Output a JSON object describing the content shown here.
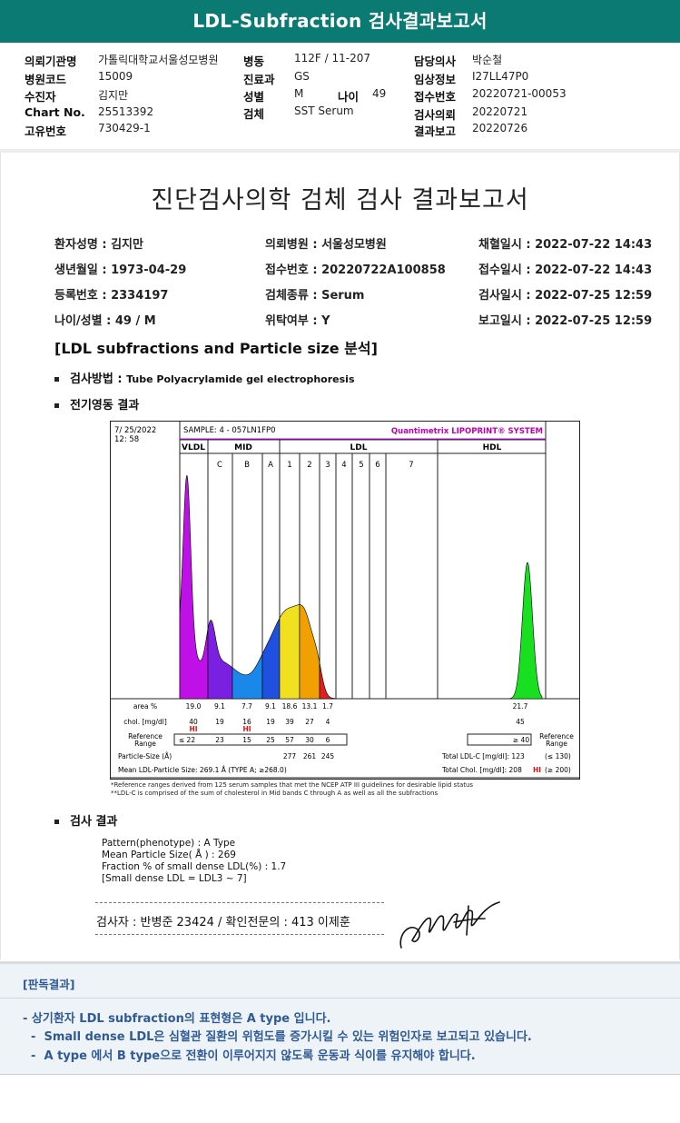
{
  "header": {
    "title": "LDL-Subfraction 검사결과보고서"
  },
  "info": [
    {
      "label": "의뢰기관명",
      "value": "가톨릭대학교서울성모병원"
    },
    {
      "label": "병원코드",
      "value": "15009"
    },
    {
      "label": "수진자",
      "value": "김지만"
    },
    {
      "label": "Chart No.",
      "value": "25513392"
    },
    {
      "label": "고유번호",
      "value": "730429-1"
    },
    {
      "label": "병동",
      "value": "112F / 11-207"
    },
    {
      "label": "진료과",
      "value": "GS"
    },
    {
      "label": "성별",
      "value": "M"
    },
    {
      "label": "검체",
      "value": "SST Serum"
    },
    {
      "label": "담당의사",
      "value": "박순철"
    },
    {
      "label": "임상정보",
      "value": "I27LL47P0"
    },
    {
      "label": "접수번호",
      "value": "20220721-00053"
    },
    {
      "label": "검사의뢰",
      "value": "20220721"
    },
    {
      "label": "결과보고",
      "value": "20220726"
    }
  ],
  "age": {
    "label": "나이",
    "value": "49"
  },
  "report": {
    "title": "진단검사의학 검체 검사 결과보고서",
    "fields": [
      "환자성명 : 김지만",
      "의뢰병원 : 서울성모병원",
      "채혈일시 : 2022-07-22 14:43",
      "생년월일 : 1973-04-29",
      "접수번호 : 20220722A100858",
      "접수일시 : 2022-07-22 14:43",
      "등록번호 : 2334197",
      "검체종류 : Serum",
      "검사일시 : 2022-07-25 12:59",
      "나이/성별 : 49 / M",
      "위탁여부 : Y",
      "보고일시 : 2022-07-25 12:59"
    ],
    "section": "[LDL subfractions and Particle size 분석]",
    "method_label": "검사방법 :",
    "method_value": "Tube Polyacrylamide gel electrophoresis",
    "electro": "전기영동 결과",
    "results_label": "검사 결과",
    "results": [
      "Pattern(phenotype) : A Type",
      "Mean Particle Size( Å ) : 269",
      "Fraction % of small dense LDL(%) : 1.7",
      "[Small dense LDL = LDL3 ~ 7]"
    ],
    "signer": "검사자 : 반병준  23424  /  확인전문의 : 413  이제훈"
  },
  "chart_data": {
    "type": "area",
    "date": "7/ 25/2022",
    "time": "12: 58",
    "sample": "SAMPLE:   4 - 057LN1FP0",
    "brand": "Quantimetrix LIPOPRINT® SYSTEM",
    "groups": [
      "VLDL",
      "MID",
      "LDL",
      "HDL"
    ],
    "bands": [
      "C",
      "B",
      "A",
      "1",
      "2",
      "3",
      "4",
      "5",
      "6",
      "7"
    ],
    "rows": {
      "area": {
        "label": "area %",
        "values": [
          "19.0",
          "9.1",
          "7.7",
          "9.1",
          "18.6",
          "13.1",
          "1.7"
        ],
        "hdl": "21.7"
      },
      "chol": {
        "label": "chol. [mg/dl]",
        "values": [
          "40",
          "19",
          "16",
          "19",
          "39",
          "27",
          "4"
        ],
        "hdl": "45"
      },
      "hi": [
        "HI",
        "HI"
      ],
      "ref": {
        "label": "Reference Range",
        "values": [
          "≤  22",
          "23",
          "15",
          "25",
          "57",
          "30",
          "6"
        ],
        "hdl": "≥ 40",
        "right": "Reference Range"
      },
      "psize": {
        "label": "Particle-Size (Å)",
        "values": [
          "277",
          "261",
          "245"
        ]
      },
      "mean": "Mean LDL-Particle Size:   269.1 Å  (TYPE A; ≥268.0)",
      "total_ldl": "Total LDL-C [mg/dl]:  123",
      "total_ldl_ref": "(≤ 130)",
      "total_chol": "Total Chol. [mg/dl]:   208",
      "total_chol_hi": "HI",
      "total_chol_ref": "(≥ 200)"
    },
    "footnotes": [
      "*Reference ranges derived from 125 serum samples that met the NCEP ATP III guidelines for desirable lipid status",
      "**LDL-C is comprised of the sum of cholesterol in Mid bands C through A as well as all the subfractions"
    ],
    "colors": {
      "vldl": "#c010e8",
      "mid": "#7a20e0",
      "band_b": "#1a88e8",
      "band_a": "#2050e0",
      "ldl1": "#f0e020",
      "ldl2": "#f0a000",
      "ldl3": "#e02020",
      "hdl": "#18e020"
    }
  },
  "panel": {
    "title": "[판독결과]",
    "lines": [
      "- 상기환자 LDL subfraction의 표현형은 A type 입니다.",
      "  -  Small dense LDL은 심혈관 질환의 위험도를 증가시킬 수 있는 위험인자로 보고되고 있습니다.",
      "  -  A type 에서 B type으로 전환이 이루어지지 않도록 운동과 식이를 유지해야 합니다."
    ]
  }
}
